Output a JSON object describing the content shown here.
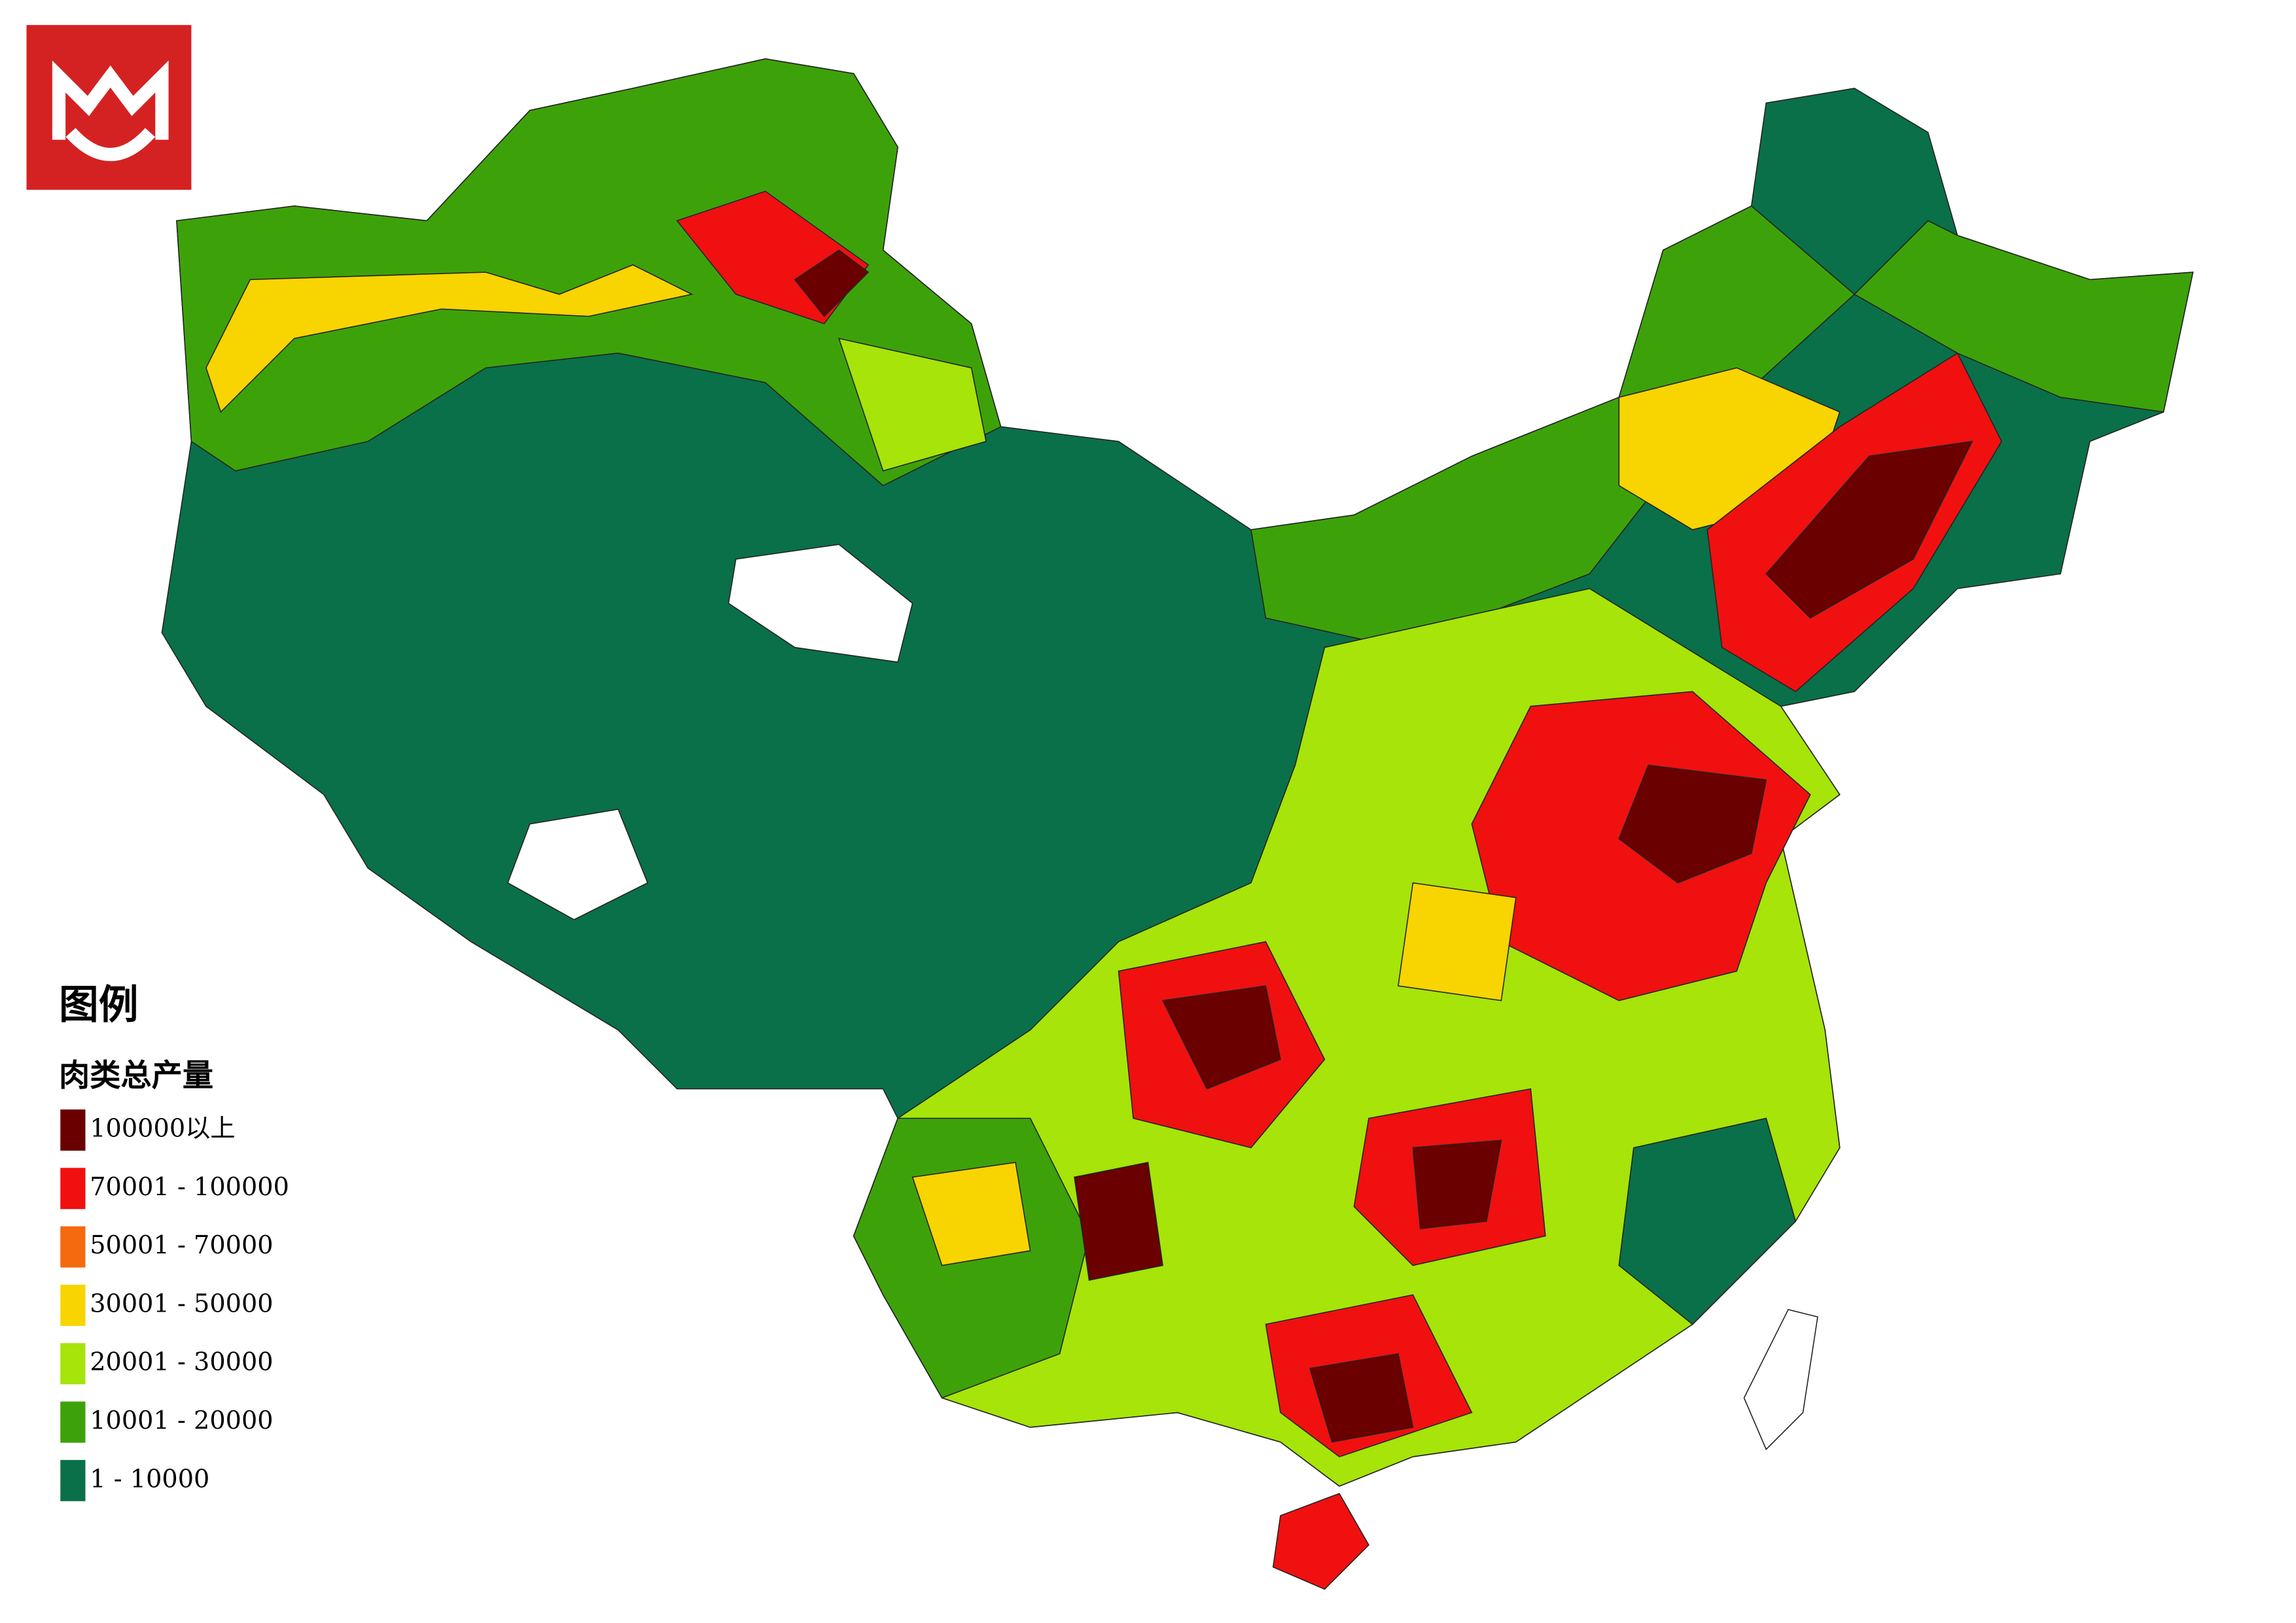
{
  "legend": {
    "title": "图例",
    "subtitle": "肉类总产量",
    "items": [
      {
        "label": "100000以上",
        "color": "#6b0000"
      },
      {
        "label": "70001 - 100000",
        "color": "#f01010"
      },
      {
        "label": "50001 - 70000",
        "color": "#f5690f"
      },
      {
        "label": "30001 - 50000",
        "color": "#f8d400"
      },
      {
        "label": "20001 - 30000",
        "color": "#a6e40a"
      },
      {
        "label": "10001 - 20000",
        "color": "#3da20a"
      },
      {
        "label": "1 - 10000",
        "color": "#0a7049"
      }
    ]
  }
}
